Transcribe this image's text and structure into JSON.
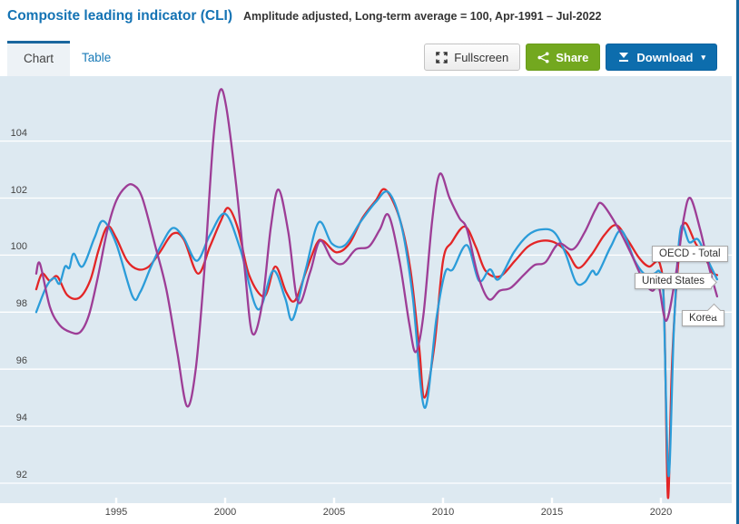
{
  "header": {
    "title": "Composite leading indicator (CLI)",
    "subtitle": "Amplitude adjusted, Long-term average = 100, Apr-1991 – Jul-2022"
  },
  "tabs": [
    {
      "label": "Chart",
      "active": true
    },
    {
      "label": "Table",
      "active": false
    }
  ],
  "toolbar": {
    "fullscreen_label": "Fullscreen",
    "share_label": "Share",
    "download_label": "Download",
    "download_caret": "▾"
  },
  "colors": {
    "plot_bg": "#dde9f1",
    "gridline": "#ffffff",
    "axis_text": "#444444",
    "title_blue": "#1473b4",
    "accent_border": "#16679f",
    "oecd_red": "#e32526",
    "us_blue": "#2b9cd9",
    "korea_purple": "#9d3d96",
    "share_green": "#73a81f",
    "download_blue": "#0d6dad"
  },
  "chart_data": {
    "type": "line",
    "title": "Composite leading indicator (CLI)",
    "subtitle": "Amplitude adjusted, Long-term average = 100, Apr-1991 – Jul-2022",
    "grid": true,
    "legend_position": "series-end-tooltips",
    "x_axis": {
      "ticks": [
        1995,
        2000,
        2005,
        2010,
        2015,
        2020
      ],
      "range": [
        1991.25,
        2022.58
      ]
    },
    "y_axis": {
      "ticks": [
        92,
        94,
        96,
        98,
        100,
        102,
        104
      ],
      "range": [
        91.3,
        106.2
      ]
    },
    "series": [
      {
        "name": "OECD - Total",
        "color": "#e32526",
        "points": [
          [
            1991.33,
            98.8
          ],
          [
            1991.6,
            99.35
          ],
          [
            1991.95,
            99.1
          ],
          [
            1992.3,
            99.25
          ],
          [
            1992.75,
            98.6
          ],
          [
            1993.3,
            98.5
          ],
          [
            1993.8,
            99.1
          ],
          [
            1994.2,
            100.2
          ],
          [
            1994.6,
            101.0
          ],
          [
            1995.0,
            100.6
          ],
          [
            1995.5,
            99.8
          ],
          [
            1996.0,
            99.5
          ],
          [
            1996.5,
            99.6
          ],
          [
            1997.0,
            100.1
          ],
          [
            1997.6,
            100.75
          ],
          [
            1998.1,
            100.55
          ],
          [
            1998.75,
            99.35
          ],
          [
            1999.3,
            100.3
          ],
          [
            1999.8,
            101.2
          ],
          [
            2000.15,
            101.65
          ],
          [
            2000.6,
            100.9
          ],
          [
            2001.1,
            99.3
          ],
          [
            2001.8,
            98.55
          ],
          [
            2002.3,
            99.6
          ],
          [
            2002.8,
            98.7
          ],
          [
            2003.2,
            98.4
          ],
          [
            2003.7,
            99.4
          ],
          [
            2004.2,
            100.4
          ],
          [
            2004.5,
            100.5
          ],
          [
            2005.1,
            100.1
          ],
          [
            2005.7,
            100.4
          ],
          [
            2006.3,
            101.3
          ],
          [
            2006.9,
            101.9
          ],
          [
            2007.35,
            102.3
          ],
          [
            2008.0,
            101.3
          ],
          [
            2008.5,
            99.5
          ],
          [
            2008.9,
            96.8
          ],
          [
            2009.15,
            95.0
          ],
          [
            2009.6,
            96.8
          ],
          [
            2010.0,
            99.8
          ],
          [
            2010.4,
            100.45
          ],
          [
            2011.0,
            101.0
          ],
          [
            2011.5,
            100.3
          ],
          [
            2011.95,
            99.45
          ],
          [
            2012.6,
            99.25
          ],
          [
            2013.3,
            99.8
          ],
          [
            2013.9,
            100.3
          ],
          [
            2014.5,
            100.5
          ],
          [
            2015.1,
            100.45
          ],
          [
            2015.7,
            100.1
          ],
          [
            2016.2,
            99.55
          ],
          [
            2016.8,
            100.0
          ],
          [
            2017.4,
            100.7
          ],
          [
            2017.95,
            101.05
          ],
          [
            2018.5,
            100.5
          ],
          [
            2019.0,
            99.9
          ],
          [
            2019.45,
            99.6
          ],
          [
            2019.95,
            99.7
          ],
          [
            2020.15,
            98.0
          ],
          [
            2020.32,
            91.5
          ],
          [
            2020.5,
            96.0
          ],
          [
            2020.75,
            99.3
          ],
          [
            2021.05,
            101.1
          ],
          [
            2021.6,
            100.4
          ],
          [
            2022.1,
            99.8
          ],
          [
            2022.35,
            99.4
          ],
          [
            2022.58,
            99.3
          ]
        ]
      },
      {
        "name": "United States",
        "color": "#2b9cd9",
        "points": [
          [
            1991.33,
            98.0
          ],
          [
            1991.8,
            98.9
          ],
          [
            1992.15,
            99.2
          ],
          [
            1992.4,
            99.0
          ],
          [
            1992.65,
            99.6
          ],
          [
            1992.85,
            99.55
          ],
          [
            1993.05,
            100.05
          ],
          [
            1993.45,
            99.6
          ],
          [
            1994.0,
            100.6
          ],
          [
            1994.4,
            101.2
          ],
          [
            1995.0,
            100.4
          ],
          [
            1995.75,
            98.55
          ],
          [
            1996.1,
            98.7
          ],
          [
            1996.6,
            99.6
          ],
          [
            1997.1,
            100.4
          ],
          [
            1997.6,
            100.95
          ],
          [
            1998.1,
            100.6
          ],
          [
            1998.7,
            99.8
          ],
          [
            1999.3,
            100.7
          ],
          [
            2000.0,
            101.45
          ],
          [
            2000.7,
            100.2
          ],
          [
            2001.5,
            98.1
          ],
          [
            2002.2,
            99.45
          ],
          [
            2002.75,
            98.5
          ],
          [
            2003.1,
            97.75
          ],
          [
            2003.7,
            99.5
          ],
          [
            2004.3,
            101.15
          ],
          [
            2004.9,
            100.4
          ],
          [
            2005.5,
            100.35
          ],
          [
            2006.2,
            101.15
          ],
          [
            2006.9,
            101.85
          ],
          [
            2007.5,
            102.2
          ],
          [
            2008.1,
            101.0
          ],
          [
            2008.6,
            98.6
          ],
          [
            2009.15,
            94.65
          ],
          [
            2009.7,
            97.8
          ],
          [
            2010.1,
            99.4
          ],
          [
            2010.45,
            99.5
          ],
          [
            2011.1,
            100.35
          ],
          [
            2011.65,
            99.1
          ],
          [
            2012.15,
            99.5
          ],
          [
            2012.55,
            99.15
          ],
          [
            2013.25,
            100.1
          ],
          [
            2013.9,
            100.7
          ],
          [
            2014.5,
            100.9
          ],
          [
            2015.1,
            100.8
          ],
          [
            2015.6,
            100.1
          ],
          [
            2016.1,
            99.05
          ],
          [
            2016.5,
            99.05
          ],
          [
            2016.85,
            99.45
          ],
          [
            2017.1,
            99.35
          ],
          [
            2017.7,
            100.3
          ],
          [
            2018.2,
            100.85
          ],
          [
            2018.8,
            99.8
          ],
          [
            2019.3,
            99.3
          ],
          [
            2019.7,
            99.35
          ],
          [
            2019.95,
            99.4
          ],
          [
            2020.12,
            98.5
          ],
          [
            2020.35,
            92.25
          ],
          [
            2020.6,
            97.5
          ],
          [
            2020.9,
            100.9
          ],
          [
            2021.3,
            100.45
          ],
          [
            2021.7,
            100.55
          ],
          [
            2022.1,
            99.9
          ],
          [
            2022.58,
            99.15
          ]
        ]
      },
      {
        "name": "Korea",
        "color": "#9d3d96",
        "points": [
          [
            1991.33,
            99.35
          ],
          [
            1991.5,
            99.7
          ],
          [
            1991.95,
            98.2
          ],
          [
            1992.4,
            97.55
          ],
          [
            1992.9,
            97.3
          ],
          [
            1993.35,
            97.3
          ],
          [
            1993.75,
            97.9
          ],
          [
            1994.15,
            99.2
          ],
          [
            1994.6,
            100.9
          ],
          [
            1995.0,
            101.9
          ],
          [
            1995.45,
            102.4
          ],
          [
            1995.8,
            102.45
          ],
          [
            1996.2,
            102.0
          ],
          [
            1996.8,
            100.3
          ],
          [
            1997.3,
            98.8
          ],
          [
            1997.8,
            96.6
          ],
          [
            1998.25,
            94.7
          ],
          [
            1998.65,
            96.0
          ],
          [
            1999.05,
            99.5
          ],
          [
            1999.45,
            104.0
          ],
          [
            1999.75,
            105.75
          ],
          [
            2000.05,
            105.2
          ],
          [
            2000.5,
            102.5
          ],
          [
            2000.9,
            99.5
          ],
          [
            2001.25,
            97.25
          ],
          [
            2001.7,
            98.3
          ],
          [
            2002.1,
            101.0
          ],
          [
            2002.45,
            102.3
          ],
          [
            2002.9,
            100.8
          ],
          [
            2003.35,
            98.35
          ],
          [
            2003.9,
            99.4
          ],
          [
            2004.35,
            100.5
          ],
          [
            2004.9,
            99.85
          ],
          [
            2005.4,
            99.7
          ],
          [
            2006.0,
            100.2
          ],
          [
            2006.6,
            100.3
          ],
          [
            2007.1,
            100.9
          ],
          [
            2007.5,
            101.4
          ],
          [
            2008.0,
            99.8
          ],
          [
            2008.45,
            97.6
          ],
          [
            2008.75,
            96.6
          ],
          [
            2009.1,
            97.9
          ],
          [
            2009.5,
            101.2
          ],
          [
            2009.85,
            102.85
          ],
          [
            2010.3,
            102.0
          ],
          [
            2010.75,
            101.3
          ],
          [
            2011.1,
            100.9
          ],
          [
            2011.6,
            99.3
          ],
          [
            2012.1,
            98.45
          ],
          [
            2012.6,
            98.75
          ],
          [
            2013.1,
            98.85
          ],
          [
            2013.7,
            99.3
          ],
          [
            2014.2,
            99.65
          ],
          [
            2014.7,
            99.75
          ],
          [
            2015.3,
            100.4
          ],
          [
            2015.95,
            100.2
          ],
          [
            2016.5,
            100.8
          ],
          [
            2017.0,
            101.6
          ],
          [
            2017.3,
            101.8
          ],
          [
            2018.0,
            101.0
          ],
          [
            2018.6,
            100.1
          ],
          [
            2019.2,
            99.1
          ],
          [
            2019.6,
            98.75
          ],
          [
            2019.9,
            98.9
          ],
          [
            2020.25,
            97.7
          ],
          [
            2020.7,
            99.4
          ],
          [
            2021.05,
            101.3
          ],
          [
            2021.35,
            102.0
          ],
          [
            2021.8,
            100.9
          ],
          [
            2022.2,
            99.6
          ],
          [
            2022.58,
            98.55
          ]
        ]
      }
    ]
  }
}
